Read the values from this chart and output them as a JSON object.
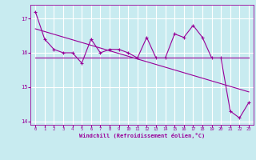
{
  "x": [
    0,
    1,
    2,
    3,
    4,
    5,
    6,
    7,
    8,
    9,
    10,
    11,
    12,
    13,
    14,
    15,
    16,
    17,
    18,
    19,
    20,
    21,
    22,
    23
  ],
  "y_line": [
    17.2,
    16.4,
    16.1,
    16.0,
    16.0,
    15.7,
    16.4,
    16.0,
    16.1,
    16.1,
    16.0,
    15.85,
    16.45,
    15.85,
    15.85,
    16.55,
    16.45,
    16.8,
    16.45,
    15.85,
    15.85,
    14.3,
    14.1,
    14.55
  ],
  "y_trend": [
    16.7,
    16.62,
    16.54,
    16.46,
    16.38,
    16.3,
    16.22,
    16.14,
    16.06,
    15.98,
    15.9,
    15.82,
    15.74,
    15.66,
    15.58,
    15.5,
    15.42,
    15.34,
    15.26,
    15.18,
    15.1,
    15.02,
    14.94,
    14.86
  ],
  "y_mean": [
    15.85,
    15.85,
    15.85,
    15.85,
    15.85,
    15.85,
    15.85,
    15.85,
    15.85,
    15.85,
    15.85,
    15.85,
    15.85,
    15.85,
    15.85,
    15.85,
    15.85,
    15.85,
    15.85,
    15.85,
    15.85,
    15.85,
    15.85,
    15.85
  ],
  "line_color": "#990099",
  "background_color": "#c8ebf0",
  "grid_color": "#ffffff",
  "ylim": [
    13.9,
    17.4
  ],
  "xlim": [
    -0.5,
    23.5
  ],
  "yticks": [
    14,
    15,
    16,
    17
  ],
  "xticks": [
    0,
    1,
    2,
    3,
    4,
    5,
    6,
    7,
    8,
    9,
    10,
    11,
    12,
    13,
    14,
    15,
    16,
    17,
    18,
    19,
    20,
    21,
    22,
    23
  ],
  "xlabel": "Windchill (Refroidissement éolien,°C)"
}
